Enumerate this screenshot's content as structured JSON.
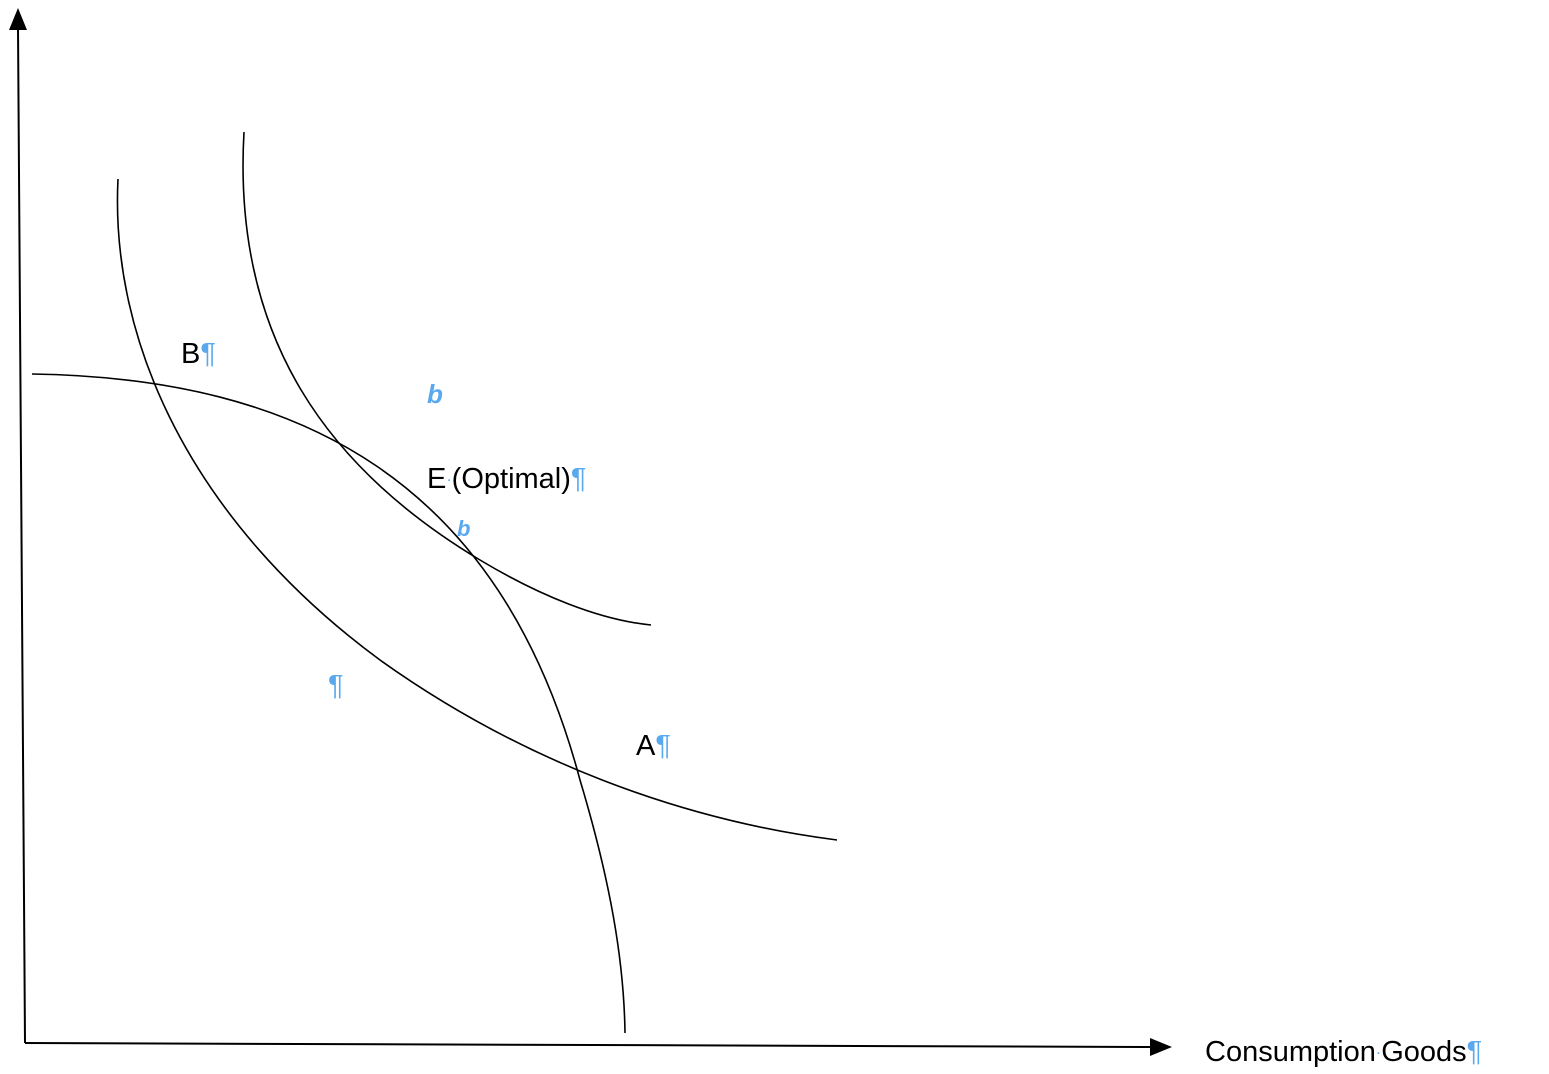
{
  "axes": {
    "x_label": "Consumption",
    "x_label_sep": "·",
    "x_label_2": "Goods",
    "y_label": ""
  },
  "points": {
    "b": "B",
    "e_letter": "E",
    "e_sep": "·",
    "e_rest": "(Optimal)",
    "a": "A"
  },
  "marks": {
    "pilcrow": "¶",
    "anchor_glyph": "b"
  },
  "curves": [
    "production-possibilities-frontier",
    "indifference-curve-lower",
    "indifference-curve-upper"
  ],
  "colors": {
    "line": "#000000",
    "formatting_marks": "#5aa9ee"
  }
}
